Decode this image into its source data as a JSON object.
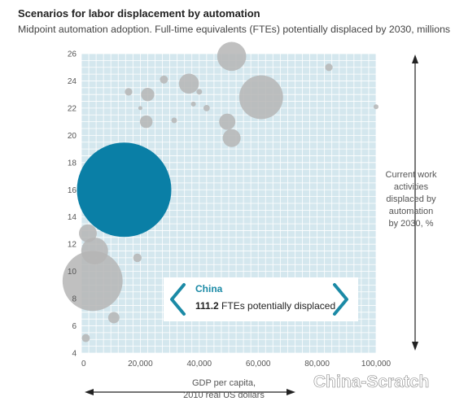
{
  "chart_data": {
    "type": "scatter",
    "title": "Scenarios for labor displacement by automation",
    "subtitle": "Midpoint automation adoption. Full-time equivalents (FTEs) potentially displaced by 2030, millions",
    "xlabel": [
      "GDP per capita,",
      "2010 real US dollars"
    ],
    "ylabel": [
      "Current work",
      "activities",
      "displaced by",
      "automation",
      "by 2030, %"
    ],
    "xlim": [
      0,
      100000
    ],
    "ylim": [
      4,
      26
    ],
    "x_ticks": [
      0,
      20000,
      40000,
      60000,
      80000,
      100000
    ],
    "x_tick_labels": [
      "0",
      "20,000",
      "40,000",
      "60,000",
      "80,000",
      "100,000"
    ],
    "y_ticks": [
      4,
      6,
      8,
      10,
      12,
      14,
      16,
      18,
      20,
      22,
      24,
      26
    ],
    "y_tick_labels": [
      "4",
      "6",
      "8",
      "10",
      "12",
      "14",
      "16",
      "18",
      "20",
      "22",
      "24",
      "26"
    ],
    "grid": true,
    "bubble_size_meaning": "FTEs potentially displaced, millions",
    "colors": {
      "plot_bg": "#d4e7ee",
      "grid": "#ffffff",
      "highlight": "#0a7fa6",
      "other": "#b5b5b5"
    },
    "points": [
      {
        "label": "China",
        "x": 14500,
        "y": 16,
        "size": 111.2,
        "highlight": true
      },
      {
        "x": 3800,
        "y": 9.3,
        "size": 45
      },
      {
        "x": 4500,
        "y": 11.5,
        "size": 9
      },
      {
        "x": 2200,
        "y": 12.8,
        "size": 4
      },
      {
        "x": 1500,
        "y": 5.1,
        "size": 0.8
      },
      {
        "x": 11000,
        "y": 6.6,
        "size": 1.6
      },
      {
        "x": 19000,
        "y": 11.0,
        "size": 0.9
      },
      {
        "x": 51000,
        "y": 25.8,
        "size": 10.5
      },
      {
        "x": 61000,
        "y": 22.8,
        "size": 24
      },
      {
        "x": 16000,
        "y": 23.2,
        "size": 0.7
      },
      {
        "x": 22500,
        "y": 23.0,
        "size": 2.2
      },
      {
        "x": 22000,
        "y": 21.0,
        "size": 2.0
      },
      {
        "x": 28000,
        "y": 24.1,
        "size": 0.8
      },
      {
        "x": 36500,
        "y": 23.8,
        "size": 5.0
      },
      {
        "x": 40000,
        "y": 23.2,
        "size": 0.4
      },
      {
        "x": 38000,
        "y": 22.3,
        "size": 0.3
      },
      {
        "x": 42500,
        "y": 22.0,
        "size": 0.5
      },
      {
        "x": 31500,
        "y": 21.1,
        "size": 0.4
      },
      {
        "x": 49500,
        "y": 21.0,
        "size": 3.3
      },
      {
        "x": 51000,
        "y": 19.8,
        "size": 4.0
      },
      {
        "x": 84000,
        "y": 25.0,
        "size": 0.7
      },
      {
        "x": 100000,
        "y": 22.1,
        "size": 0.3
      },
      {
        "x": 20000,
        "y": 22.0,
        "size": 0.2
      }
    ],
    "callout": {
      "title": "China",
      "value": "111.2",
      "text": " FTEs potentially displaced"
    }
  },
  "watermark": "China-Scratch"
}
